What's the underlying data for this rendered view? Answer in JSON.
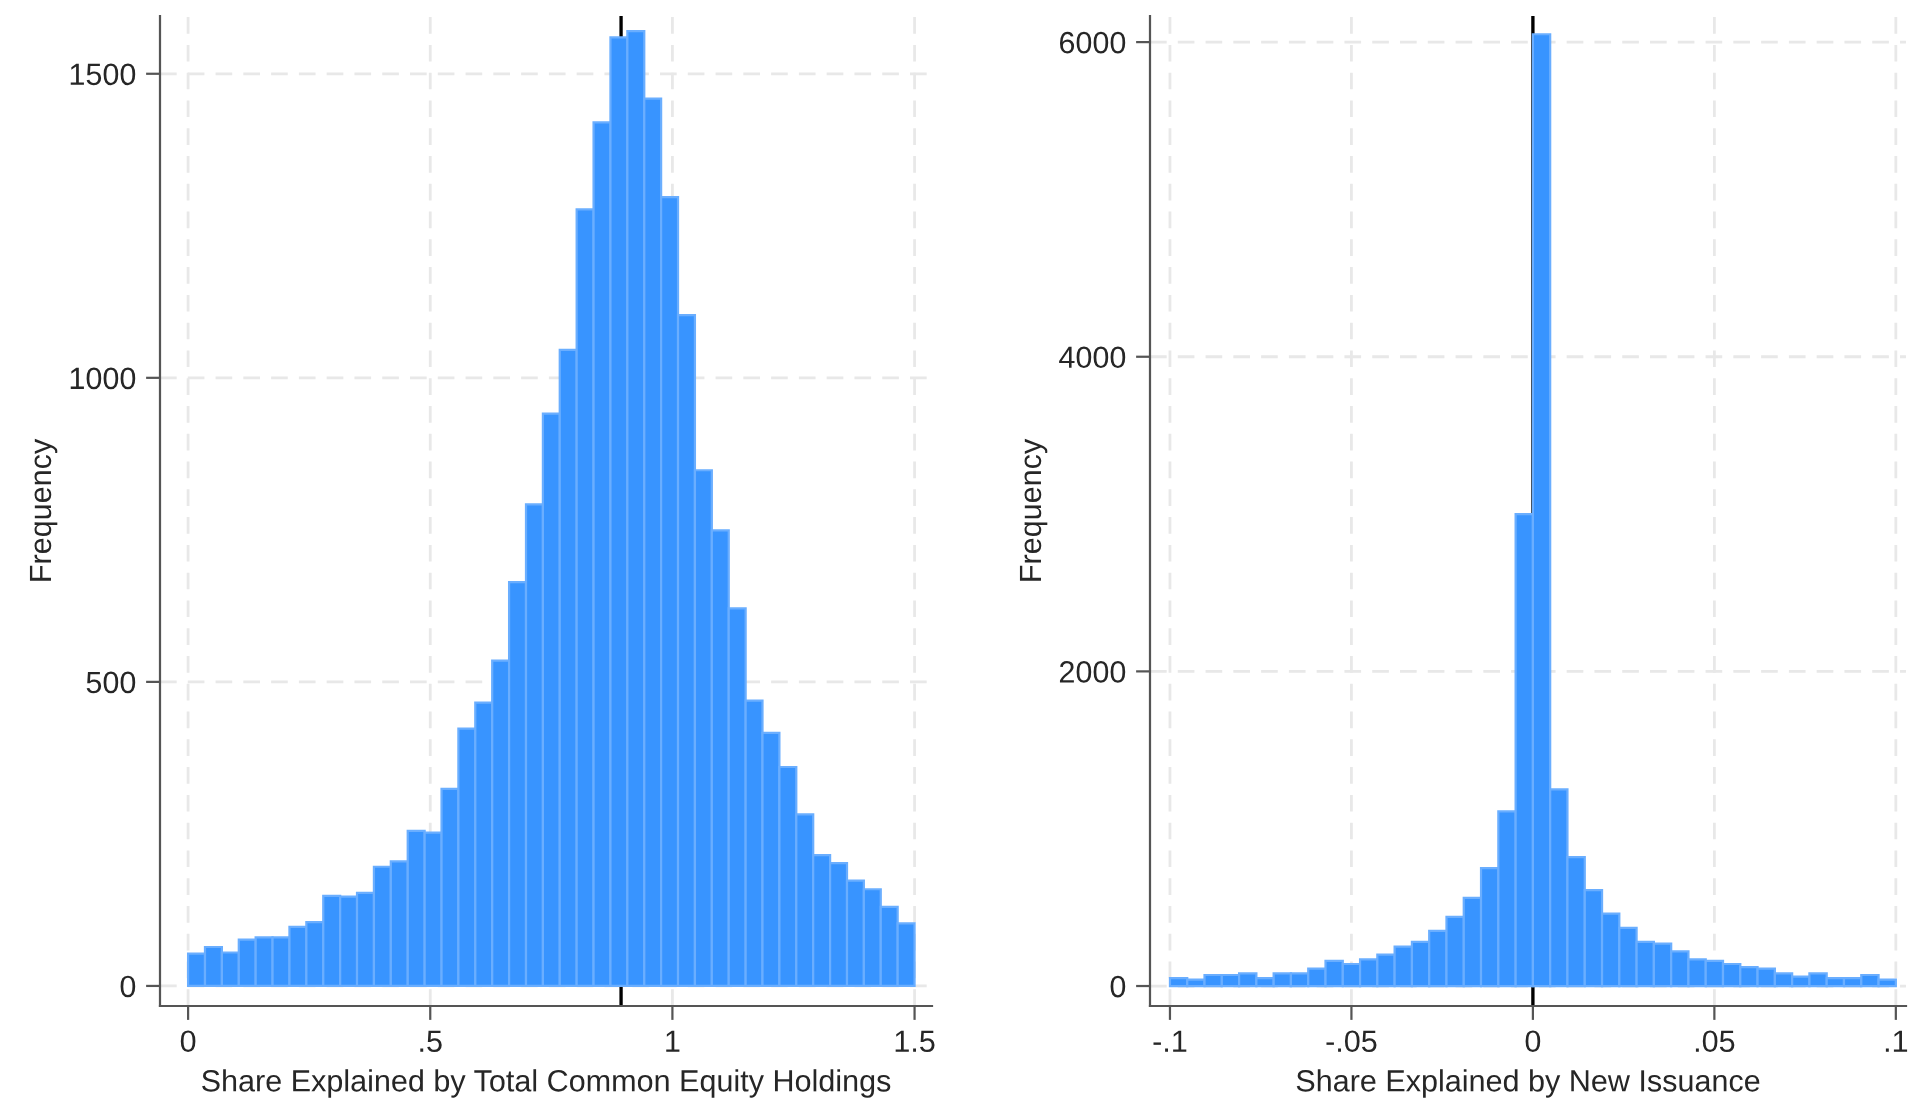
{
  "chart_data": [
    {
      "type": "histogram",
      "xlabel": "Share Explained by Total Common Equity Holdings",
      "ylabel": "Frequency",
      "color": "#3894ff",
      "bins": [
        0,
        0.0349,
        0.0698,
        0.1047,
        0.1395,
        0.1744,
        0.2093,
        0.2442,
        0.2791,
        0.314,
        0.3488,
        0.3837,
        0.4186,
        0.4535,
        0.4884,
        0.5233,
        0.5581,
        0.593,
        0.6279,
        0.6628,
        0.6977,
        0.7326,
        0.7674,
        0.8023,
        0.8372,
        0.8721,
        0.907,
        0.9419,
        0.9767,
        1.0116,
        1.0465,
        1.0814,
        1.1163,
        1.1512,
        1.186,
        1.2209,
        1.2558,
        1.2907,
        1.3256,
        1.3605,
        1.3953,
        1.4302,
        1.4651,
        1.5
      ],
      "values": [
        53,
        64,
        55,
        76,
        80,
        80,
        97,
        105,
        148,
        147,
        153,
        196,
        205,
        255,
        252,
        324,
        423,
        466,
        535,
        664,
        792,
        941,
        1046,
        1277,
        1420,
        1560,
        1570,
        1459,
        1297,
        1103,
        848,
        749,
        621,
        469,
        416,
        360,
        282,
        215,
        202,
        173,
        159,
        130,
        103
      ],
      "xlim": [
        -0.058,
        1.536
      ],
      "ylim": [
        -33,
        1595
      ],
      "xticks": [
        0,
        {
          "value": 0.5,
          "label": ".5"
        },
        1,
        1.5
      ],
      "yticks": [
        0,
        500,
        1000,
        1500
      ],
      "ref_lines": [
        {
          "axis": "x",
          "value": 0.894,
          "color": "#000000"
        }
      ],
      "grid": true
    },
    {
      "type": "histogram",
      "xlabel": "Share Explained by New Issuance",
      "ylabel": "Frequency",
      "color": "#3894ff",
      "bins": [
        -0.1,
        -0.09524,
        -0.09048,
        -0.08571,
        -0.08095,
        -0.07619,
        -0.07143,
        -0.06667,
        -0.0619,
        -0.05714,
        -0.05238,
        -0.04762,
        -0.04286,
        -0.0381,
        -0.03333,
        -0.02857,
        -0.02381,
        -0.01905,
        -0.01429,
        -0.00952,
        -0.00476,
        0,
        0.00476,
        0.00952,
        0.01429,
        0.01905,
        0.02381,
        0.02857,
        0.03333,
        0.0381,
        0.04286,
        0.04762,
        0.05238,
        0.05714,
        0.0619,
        0.06667,
        0.07143,
        0.07619,
        0.08095,
        0.08571,
        0.09048,
        0.09524,
        0.1
      ],
      "values": [
        50,
        40,
        70,
        70,
        80,
        50,
        80,
        80,
        110,
        160,
        140,
        170,
        200,
        250,
        280,
        350,
        440,
        560,
        750,
        1110,
        3000,
        6050,
        1250,
        820,
        610,
        460,
        370,
        280,
        270,
        220,
        170,
        160,
        140,
        120,
        110,
        80,
        60,
        80,
        50,
        50,
        70,
        40
      ],
      "xlim": [
        -0.1055,
        0.1028
      ],
      "ylim": [
        -127,
        6166
      ],
      "xticks": [
        {
          "value": -0.1,
          "label": "-.1"
        },
        {
          "value": -0.05,
          "label": "-.05"
        },
        0,
        {
          "value": 0.05,
          "label": ".05"
        },
        {
          "value": 0.1,
          "label": ".1"
        }
      ],
      "yticks": [
        0,
        2000,
        4000,
        6000
      ],
      "ref_lines": [
        {
          "axis": "x",
          "value": 0,
          "color": "#000000"
        }
      ],
      "grid": true
    }
  ]
}
